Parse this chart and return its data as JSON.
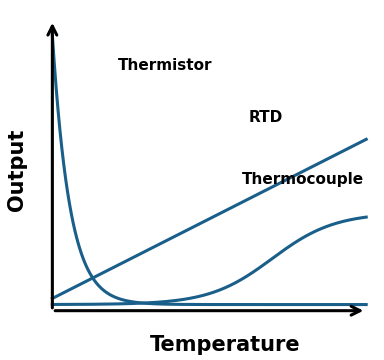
{
  "xlabel": "Temperature",
  "ylabel": "Output",
  "curve_color": "#1a5f8a",
  "line_width": 2.2,
  "background_color": "#ffffff",
  "thermistor_label": "Thermistor",
  "rtd_label": "RTD",
  "thermocouple_label": "Thermocouple",
  "xlabel_fontsize": 15,
  "ylabel_fontsize": 15,
  "label_fontsize": 11
}
